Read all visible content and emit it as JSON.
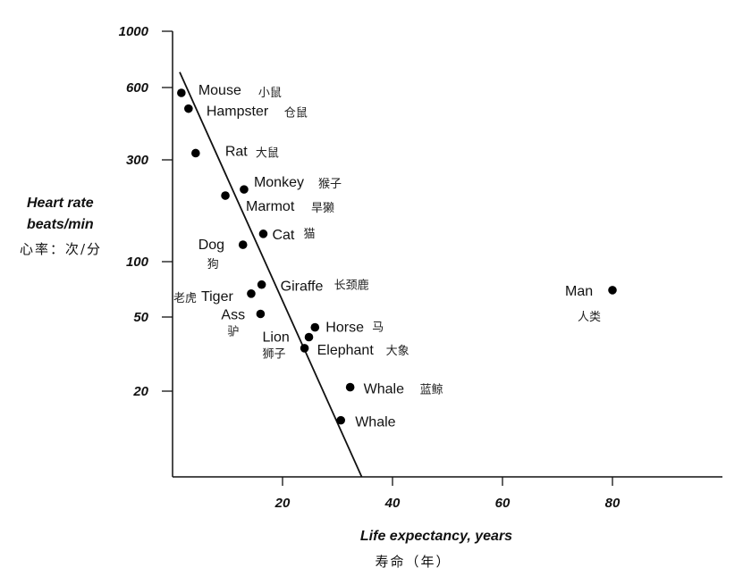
{
  "chart_data": {
    "type": "scatter",
    "title": "",
    "xlabel": "Life expectancy, years",
    "xlabel_cn": "寿命（年）",
    "ylabel": [
      "Heart rate",
      "beats/min"
    ],
    "ylabel_cn": "心率：次/分",
    "xscale": "linear",
    "yscale": "log",
    "xlim": [
      0,
      100
    ],
    "ylim": [
      7,
      1000
    ],
    "xticks": [
      20,
      40,
      60,
      80
    ],
    "yticks": [
      1000,
      600,
      300,
      100,
      50,
      20
    ],
    "grid": false,
    "points": [
      {
        "name": "Mouse",
        "name_cn": "小鼠",
        "x": 1.6,
        "y": 570
      },
      {
        "name": "Hampster",
        "name_cn": "仓鼠",
        "x": 2.9,
        "y": 490
      },
      {
        "name": "Rat",
        "name_cn": "大鼠",
        "x": 4.2,
        "y": 320
      },
      {
        "name": "Monkey",
        "name_cn": "猴子",
        "x": 13,
        "y": 218
      },
      {
        "name": "Marmot",
        "name_cn": "旱獭",
        "x": 9.6,
        "y": 204
      },
      {
        "name": "Cat",
        "name_cn": "猫",
        "x": 16.5,
        "y": 135
      },
      {
        "name": "Dog",
        "name_cn": "狗",
        "x": 12.8,
        "y": 120
      },
      {
        "name": "Giraffe",
        "name_cn": "长颈鹿",
        "x": 16.2,
        "y": 75
      },
      {
        "name": "Tiger",
        "name_cn": "老虎",
        "x": 14.3,
        "y": 67
      },
      {
        "name": "Ass",
        "name_cn": "驴",
        "x": 16,
        "y": 52
      },
      {
        "name": "Horse",
        "name_cn": "马",
        "x": 25.9,
        "y": 44
      },
      {
        "name": "Lion",
        "name_cn": "狮子",
        "x": 24.8,
        "y": 39
      },
      {
        "name": "Elephant",
        "name_cn": "大象",
        "x": 24,
        "y": 34
      },
      {
        "name": "Whale",
        "name_cn": "蓝鲸",
        "x": 32.3,
        "y": 21
      },
      {
        "name": "Whale",
        "name_cn": "",
        "x": 30.6,
        "y": 14
      },
      {
        "name": "Man",
        "name_cn": "人类",
        "x": 80,
        "y": 70
      }
    ],
    "trend_line": [
      [
        1.3,
        690
      ],
      [
        34.4,
        7
      ]
    ]
  }
}
